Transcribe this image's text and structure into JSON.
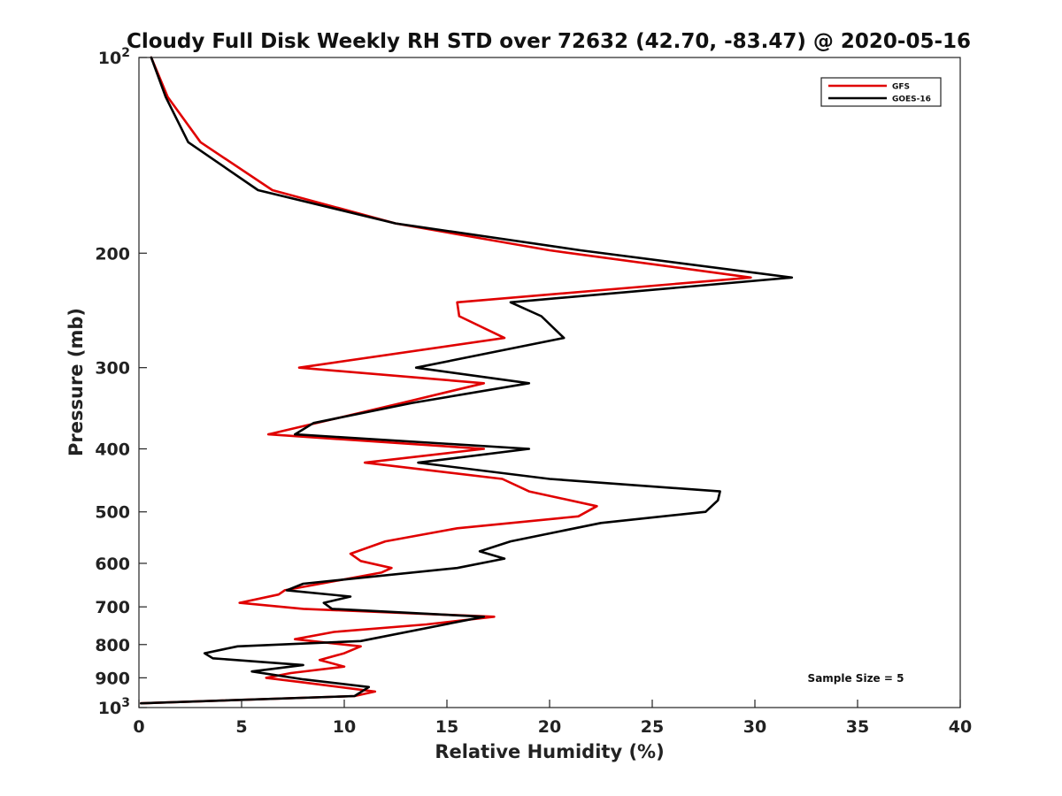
{
  "chart_data": {
    "type": "line",
    "title": "Cloudy Full Disk Weekly RH STD over 72632 (42.70, -83.47) @ 2020-05-16",
    "xlabel": "Relative Humidity (%)",
    "ylabel": "Pressure (mb)",
    "xlim": [
      0,
      40
    ],
    "ylim": [
      100,
      1000
    ],
    "y_scale": "log",
    "y_reversed": true,
    "grid": false,
    "legend_position": "top-right",
    "x_ticks": [
      "0",
      "5",
      "10",
      "15",
      "20",
      "25",
      "30",
      "35",
      "40"
    ],
    "y_ticks": [
      {
        "value": 100,
        "base": "10",
        "exp": "2"
      },
      {
        "value": 200,
        "label": "200"
      },
      {
        "value": 300,
        "label": "300"
      },
      {
        "value": 400,
        "label": "400"
      },
      {
        "value": 500,
        "label": "500"
      },
      {
        "value": 600,
        "label": "600"
      },
      {
        "value": 700,
        "label": "700"
      },
      {
        "value": 800,
        "label": "800"
      },
      {
        "value": 900,
        "label": "900"
      },
      {
        "value": 1000,
        "base": "10",
        "exp": "3"
      }
    ],
    "annotation": "Sample Size = 5",
    "series": [
      {
        "name": "GFS",
        "color": "#e00000",
        "points": [
          [
            0.6,
            100
          ],
          [
            1.4,
            115
          ],
          [
            3.0,
            135
          ],
          [
            6.5,
            160
          ],
          [
            12.5,
            180
          ],
          [
            20.0,
            198
          ],
          [
            29.8,
            218
          ],
          [
            15.5,
            238
          ],
          [
            15.6,
            250
          ],
          [
            17.8,
            270
          ],
          [
            7.8,
            300
          ],
          [
            16.8,
            317
          ],
          [
            12.8,
            340
          ],
          [
            6.3,
            380
          ],
          [
            16.8,
            400
          ],
          [
            11.0,
            420
          ],
          [
            17.7,
            445
          ],
          [
            19.0,
            465
          ],
          [
            22.3,
            490
          ],
          [
            21.4,
            508
          ],
          [
            15.5,
            530
          ],
          [
            12.0,
            555
          ],
          [
            10.3,
            580
          ],
          [
            10.8,
            595
          ],
          [
            12.3,
            610
          ],
          [
            11.8,
            620
          ],
          [
            7.1,
            660
          ],
          [
            6.8,
            670
          ],
          [
            4.9,
            690
          ],
          [
            8.0,
            705
          ],
          [
            17.3,
            725
          ],
          [
            14.0,
            745
          ],
          [
            9.5,
            765
          ],
          [
            7.6,
            785
          ],
          [
            10.8,
            805
          ],
          [
            10.0,
            825
          ],
          [
            8.8,
            845
          ],
          [
            10.0,
            865
          ],
          [
            7.4,
            885
          ],
          [
            6.2,
            900
          ],
          [
            8.0,
            915
          ],
          [
            11.5,
            945
          ],
          [
            10.5,
            960
          ],
          [
            0.1,
            985
          ]
        ]
      },
      {
        "name": "GOES-16",
        "color": "#000000",
        "points": [
          [
            0.6,
            100
          ],
          [
            1.3,
            115
          ],
          [
            2.4,
            135
          ],
          [
            5.8,
            160
          ],
          [
            12.5,
            180
          ],
          [
            21.5,
            198
          ],
          [
            31.8,
            218
          ],
          [
            18.1,
            238
          ],
          [
            19.6,
            250
          ],
          [
            20.7,
            270
          ],
          [
            13.5,
            300
          ],
          [
            19.0,
            317
          ],
          [
            13.3,
            340
          ],
          [
            8.5,
            365
          ],
          [
            7.6,
            380
          ],
          [
            19.0,
            400
          ],
          [
            13.6,
            420
          ],
          [
            20.0,
            445
          ],
          [
            28.3,
            465
          ],
          [
            28.2,
            480
          ],
          [
            27.6,
            500
          ],
          [
            22.5,
            520
          ],
          [
            18.1,
            555
          ],
          [
            16.6,
            575
          ],
          [
            17.8,
            590
          ],
          [
            15.5,
            610
          ],
          [
            8.0,
            645
          ],
          [
            7.2,
            660
          ],
          [
            10.3,
            675
          ],
          [
            9.0,
            690
          ],
          [
            9.4,
            705
          ],
          [
            16.8,
            725
          ],
          [
            10.8,
            790
          ],
          [
            4.8,
            805
          ],
          [
            3.2,
            825
          ],
          [
            3.6,
            840
          ],
          [
            8.0,
            860
          ],
          [
            5.5,
            880
          ],
          [
            8.0,
            905
          ],
          [
            11.2,
            930
          ],
          [
            10.5,
            960
          ],
          [
            0.1,
            985
          ]
        ]
      }
    ]
  }
}
